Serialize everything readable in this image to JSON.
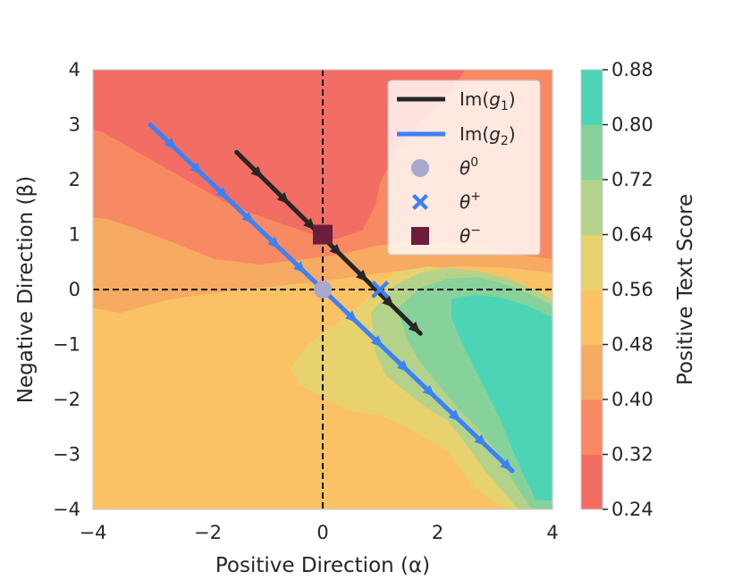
{
  "chart_data": {
    "type": "contourf",
    "xlabel": "Positive Direction (α)",
    "ylabel": "Negative Direction (β)",
    "xlim": [
      -4,
      4
    ],
    "ylim": [
      -4,
      4
    ],
    "xticks": [
      "−4",
      "−2",
      "0",
      "2",
      "4"
    ],
    "yticks": [
      "4",
      "3",
      "2",
      "1",
      "0",
      "−1",
      "−2",
      "−3",
      "−4"
    ],
    "colorbar": {
      "label": "Positive Text Score",
      "levels": [
        0.24,
        0.32,
        0.4,
        0.48,
        0.56,
        0.64,
        0.72,
        0.8,
        0.88
      ],
      "ticks": [
        "0.24",
        "0.32",
        "0.40",
        "0.48",
        "0.56",
        "0.64",
        "0.72",
        "0.80",
        "0.88"
      ],
      "colors": [
        "#f26d63",
        "#f78a62",
        "#f7aa62",
        "#fbc265",
        "#e7d26e",
        "#b5d28a",
        "#86d29a",
        "#4dd4b4"
      ]
    },
    "reference_lines": [
      {
        "axis": "x",
        "value": 0
      },
      {
        "axis": "y",
        "value": 0
      }
    ],
    "series": [
      {
        "name": "Im(g1)",
        "color": "#262626",
        "x": [
          -1.5,
          1.7
        ],
        "y": [
          2.5,
          -0.8
        ]
      },
      {
        "name": "Im(g2)",
        "color": "#3b82f6",
        "x": [
          -3.0,
          3.3
        ],
        "y": [
          3.0,
          -3.3
        ]
      }
    ],
    "points": [
      {
        "name": "theta0",
        "x": 0,
        "y": 0,
        "marker": "circle",
        "color": "#a8a8cc"
      },
      {
        "name": "theta_plus",
        "x": 1,
        "y": 0,
        "marker": "x",
        "color": "#3b82f6"
      },
      {
        "name": "theta_minus",
        "x": 0,
        "y": 1,
        "marker": "square",
        "color": "#6b1d3a"
      }
    ],
    "legend": {
      "position": "top-right",
      "entries": [
        {
          "label": "Im(",
          "sub_var": "g",
          "sub": "1",
          "close": ")"
        },
        {
          "label": "Im(",
          "sub_var": "g",
          "sub": "2",
          "close": ")"
        },
        {
          "label": "θ",
          "sup": "0"
        },
        {
          "label": "θ",
          "sup": "+"
        },
        {
          "label": "θ",
          "sup": "−"
        }
      ]
    }
  }
}
